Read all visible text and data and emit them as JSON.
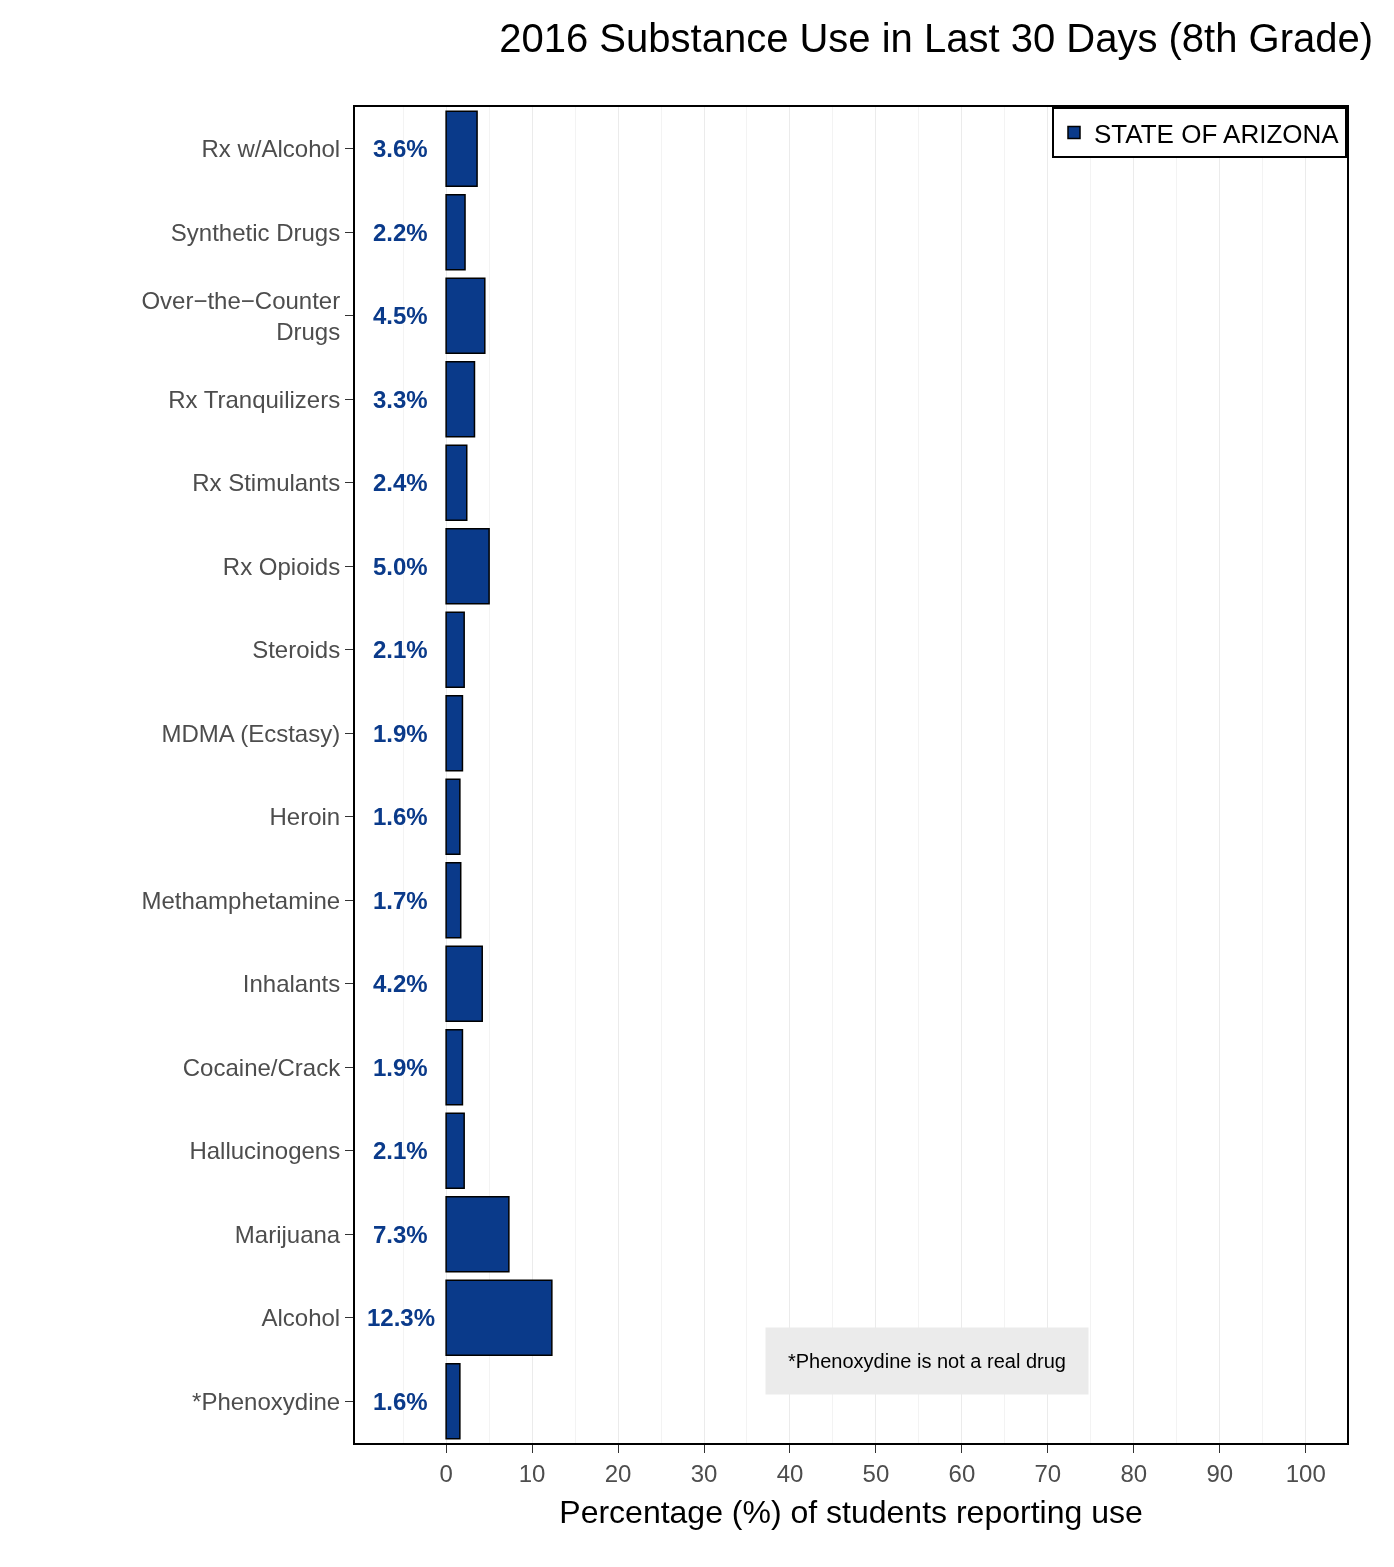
{
  "chart_data": {
    "type": "bar",
    "orientation": "horizontal",
    "title": "2016 Substance Use in Last 30 Days (8th Grade)",
    "xlabel": "Percentage (%) of students reporting use",
    "categories": [
      "Rx w/Alcohol",
      "Synthetic Drugs",
      "Over−the−Counter Drugs",
      "Rx Tranquilizers",
      "Rx Stimulants",
      "Rx Opioids",
      "Steroids",
      "MDMA (Ecstasy)",
      "Heroin",
      "Methamphetamine",
      "Inhalants",
      "Cocaine/Crack",
      "Hallucinogens",
      "Marijuana",
      "Alcohol",
      "*Phenoxydine"
    ],
    "series": [
      {
        "name": "STATE OF ARIZONA",
        "color": "#0a3a8a",
        "values": [
          3.6,
          2.2,
          4.5,
          3.3,
          2.4,
          5.0,
          2.1,
          1.9,
          1.6,
          1.7,
          4.2,
          1.9,
          2.1,
          7.3,
          12.3,
          1.6
        ],
        "value_labels": [
          "3.6%",
          "2.2%",
          "4.5%",
          "3.3%",
          "2.4%",
          "5.0%",
          "2.1%",
          "1.9%",
          "1.6%",
          "1.7%",
          "4.2%",
          "1.9%",
          "2.1%",
          "7.3%",
          "12.3%",
          "1.6%"
        ]
      }
    ],
    "xlim": [
      -10.6,
      104.8
    ],
    "xticks": [
      0,
      10,
      20,
      30,
      40,
      50,
      60,
      70,
      80,
      90,
      100
    ],
    "grid": "x",
    "legend": "top right",
    "annotations": [
      "*Phenoxydine is not a real drug"
    ]
  }
}
